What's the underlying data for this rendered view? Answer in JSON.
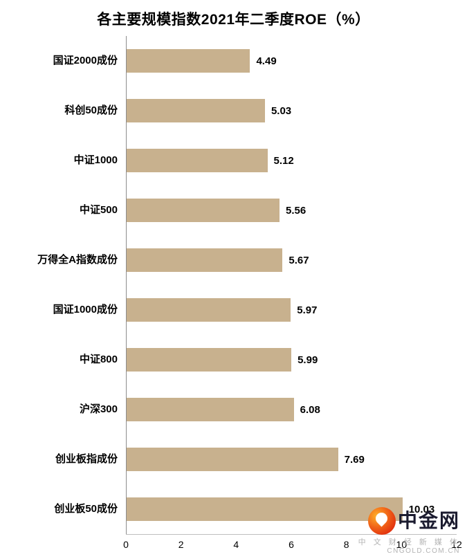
{
  "chart_data": {
    "type": "bar",
    "orientation": "horizontal",
    "title": "各主要规模指数2021年二季度ROE（%）",
    "categories": [
      "国证2000成份",
      "科创50成份",
      "中证1000",
      "中证500",
      "万得全A指数成份",
      "国证1000成份",
      "中证800",
      "沪深300",
      "创业板指成份",
      "创业板50成份"
    ],
    "values": [
      4.49,
      5.03,
      5.12,
      5.56,
      5.67,
      5.97,
      5.99,
      6.08,
      7.69,
      10.03
    ],
    "xlabel": "",
    "ylabel": "",
    "xlim": [
      0,
      12
    ],
    "x_ticks": [
      0,
      2,
      4,
      6,
      8,
      10,
      12
    ],
    "bar_color": "#c8b18e",
    "axis_line_color": "#8c8c8c",
    "grid": false,
    "value_labels": true,
    "legend": "none"
  },
  "watermark": {
    "brand": "中金网",
    "tagline": "中 文 财 经 新 媒 体",
    "domain": "CNGOLD.COM.CN",
    "logo_color": "#e8380d"
  }
}
